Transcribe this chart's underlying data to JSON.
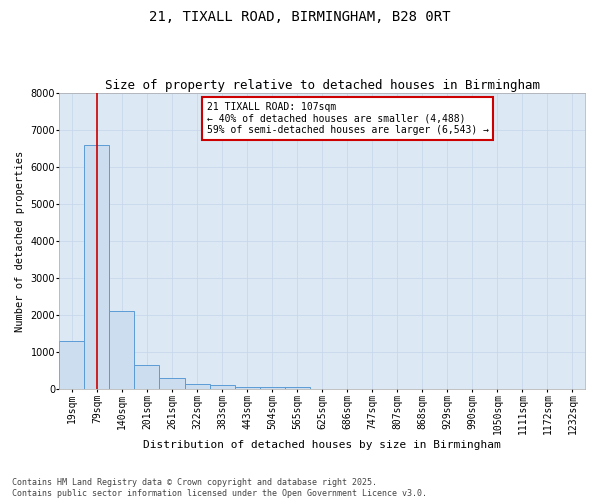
{
  "title": "21, TIXALL ROAD, BIRMINGHAM, B28 0RT",
  "subtitle": "Size of property relative to detached houses in Birmingham",
  "xlabel": "Distribution of detached houses by size in Birmingham",
  "ylabel": "Number of detached properties",
  "categories": [
    "19sqm",
    "79sqm",
    "140sqm",
    "201sqm",
    "261sqm",
    "322sqm",
    "383sqm",
    "443sqm",
    "504sqm",
    "565sqm",
    "625sqm",
    "686sqm",
    "747sqm",
    "807sqm",
    "868sqm",
    "929sqm",
    "990sqm",
    "1050sqm",
    "1111sqm",
    "1172sqm",
    "1232sqm"
  ],
  "values": [
    1300,
    6600,
    2100,
    650,
    300,
    150,
    100,
    50,
    50,
    50,
    0,
    0,
    0,
    0,
    0,
    0,
    0,
    0,
    0,
    0,
    0
  ],
  "bar_color": "#ccddf0",
  "bar_edge_color": "#5b9bd5",
  "red_line_x": 1,
  "ylim": [
    0,
    8000
  ],
  "yticks": [
    0,
    1000,
    2000,
    3000,
    4000,
    5000,
    6000,
    7000,
    8000
  ],
  "annotation_text": "21 TIXALL ROAD: 107sqm\n← 40% of detached houses are smaller (4,488)\n59% of semi-detached houses are larger (6,543) →",
  "annotation_box_color": "#ffffff",
  "annotation_border_color": "#cc0000",
  "footnote": "Contains HM Land Registry data © Crown copyright and database right 2025.\nContains public sector information licensed under the Open Government Licence v3.0.",
  "title_fontsize": 10,
  "subtitle_fontsize": 9,
  "xlabel_fontsize": 8,
  "ylabel_fontsize": 7.5,
  "tick_fontsize": 7,
  "annotation_fontsize": 7,
  "footnote_fontsize": 6,
  "grid_color": "#c8d8ec",
  "bg_color": "#dce8f4"
}
